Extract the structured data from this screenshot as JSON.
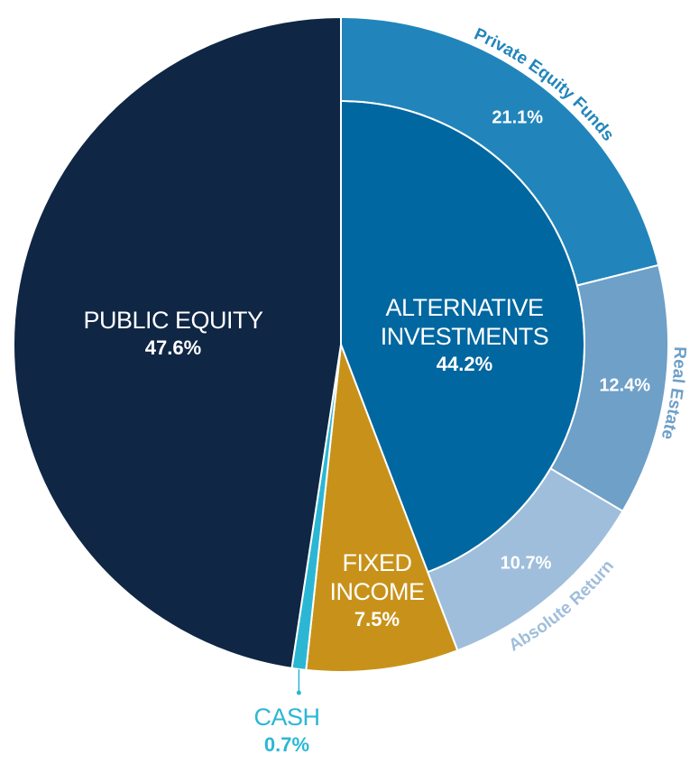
{
  "chart_data": {
    "type": "pie",
    "categories": [
      "ALTERNATIVE INVESTMENTS",
      "FIXED INCOME",
      "CASH",
      "PUBLIC EQUITY"
    ],
    "values": [
      44.2,
      7.5,
      0.7,
      47.6
    ],
    "value_labels": [
      "44.2%",
      "7.5%",
      "0.7%",
      "47.6%"
    ],
    "colors": [
      "#0067a0",
      "#c8921a",
      "#2bb7d4",
      "#0f2645"
    ],
    "sub_categories": [
      "Private Equity Funds",
      "Real Estate",
      "Absolute Return"
    ],
    "sub_values": [
      21.1,
      12.4,
      10.7
    ],
    "sub_value_labels": [
      "21.1%",
      "12.4%",
      "10.7%"
    ],
    "sub_colors": [
      "#2185bb",
      "#6ea0c8",
      "#9fbedb"
    ]
  }
}
